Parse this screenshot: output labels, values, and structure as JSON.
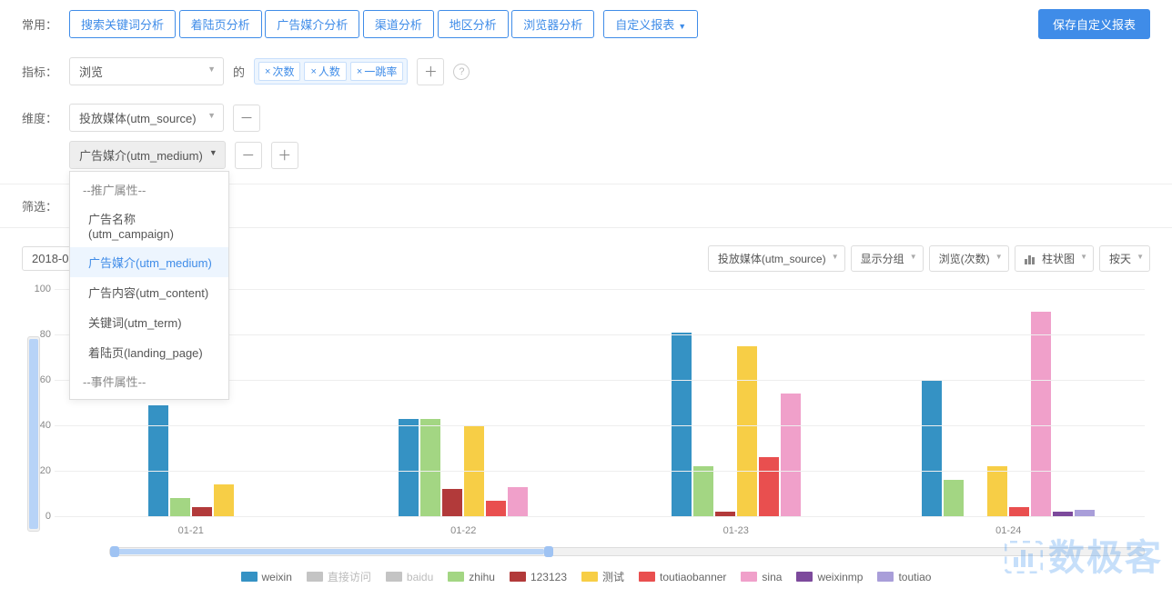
{
  "labels": {
    "common": "常用：",
    "metric": "指标：",
    "of": "的",
    "dimension": "维度：",
    "filter": "筛选："
  },
  "common_tags": [
    "搜索关键词分析",
    "着陆页分析",
    "广告媒介分析",
    "渠道分析",
    "地区分析",
    "浏览器分析"
  ],
  "custom_report_btn": "自定义报表",
  "save_btn": "保存自定义报表",
  "metric_select": "浏览",
  "metric_chips": [
    "次数",
    "人数",
    "一跳率"
  ],
  "dim1_select": "投放媒体(utm_source)",
  "dim2_select": "广告媒介(utm_medium)",
  "dropdown": {
    "hdr1": "--推广属性--",
    "items": [
      {
        "label": "广告名称(utm_campaign)",
        "sel": false
      },
      {
        "label": "广告媒介(utm_medium)",
        "sel": true
      },
      {
        "label": "广告内容(utm_content)",
        "sel": false
      },
      {
        "label": "关键词(utm_term)",
        "sel": false
      },
      {
        "label": "着陆页(landing_page)",
        "sel": false
      }
    ],
    "hdr2": "--事件属性--"
  },
  "date_range": "2018-0",
  "compare_btn": "对比",
  "ctrls": {
    "c1": "投放媒体(utm_source)",
    "c2": "显示分组",
    "c3": "浏览(次数)",
    "c4": "柱状图",
    "c5": "按天"
  },
  "chart": {
    "y_max": 100,
    "y_ticks": [
      100,
      80,
      60,
      40,
      20,
      0
    ],
    "x_labels": [
      "01-21",
      "01-22",
      "01-23",
      "01-24"
    ],
    "series": [
      {
        "name": "weixin",
        "color": "#3592c4",
        "off": false
      },
      {
        "name": "直接访问",
        "color": "#c4c4c4",
        "off": true
      },
      {
        "name": "baidu",
        "color": "#c4c4c4",
        "off": true
      },
      {
        "name": "zhihu",
        "color": "#a3d683",
        "off": false
      },
      {
        "name": "123123",
        "color": "#b23a3a",
        "off": false
      },
      {
        "name": "测试",
        "color": "#f7ce46",
        "off": false
      },
      {
        "name": "toutiaobanner",
        "color": "#e94f4f",
        "off": false
      },
      {
        "name": "sina",
        "color": "#f0a0ca",
        "off": false
      },
      {
        "name": "weixinmp",
        "color": "#7d4a9c",
        "off": false
      },
      {
        "name": "toutiao",
        "color": "#a99ed9",
        "off": false
      }
    ],
    "data": [
      {
        "x": "01-21",
        "bars": [
          {
            "s": 0,
            "v": 49
          },
          {
            "s": 3,
            "v": 8
          },
          {
            "s": 4,
            "v": 4
          },
          {
            "s": 5,
            "v": 14
          }
        ]
      },
      {
        "x": "01-22",
        "bars": [
          {
            "s": 0,
            "v": 43
          },
          {
            "s": 3,
            "v": 43
          },
          {
            "s": 4,
            "v": 12
          },
          {
            "s": 5,
            "v": 40
          },
          {
            "s": 6,
            "v": 7
          },
          {
            "s": 7,
            "v": 13
          }
        ]
      },
      {
        "x": "01-23",
        "bars": [
          {
            "s": 0,
            "v": 81
          },
          {
            "s": 3,
            "v": 22
          },
          {
            "s": 4,
            "v": 2
          },
          {
            "s": 5,
            "v": 75
          },
          {
            "s": 6,
            "v": 26
          },
          {
            "s": 7,
            "v": 54
          }
        ]
      },
      {
        "x": "01-24",
        "bars": [
          {
            "s": 0,
            "v": 60
          },
          {
            "s": 3,
            "v": 16
          },
          {
            "s": 4,
            "v": 0
          },
          {
            "s": 5,
            "v": 22
          },
          {
            "s": 6,
            "v": 4
          },
          {
            "s": 7,
            "v": 90
          },
          {
            "s": 8,
            "v": 2
          },
          {
            "s": 9,
            "v": 3
          }
        ]
      }
    ]
  },
  "watermark": "数极客"
}
